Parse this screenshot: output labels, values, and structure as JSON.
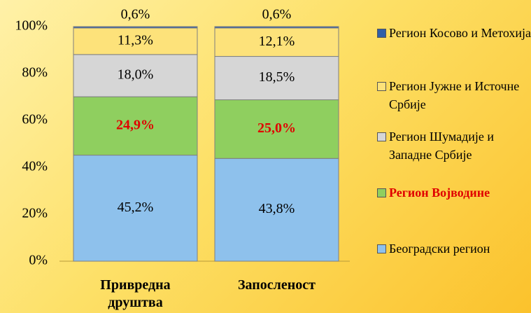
{
  "chart_data": {
    "type": "stacked_bar",
    "categories": [
      "Привредна друштва",
      "Запосленост"
    ],
    "series": [
      {
        "name": "Београдски регион",
        "color": "#8ec1ec",
        "values": [
          45.2,
          43.8
        ],
        "value_labels": [
          "45,2%",
          "43,8%"
        ]
      },
      {
        "name": "Регион Војводине",
        "color": "#8fcf5f",
        "values": [
          24.9,
          25.0
        ],
        "value_labels": [
          "24,9%",
          "25,0%"
        ],
        "label_color": "#e00000"
      },
      {
        "name": "Регион Шумадије и Западне Србије",
        "color": "#d6d6d6",
        "values": [
          18.0,
          18.5
        ],
        "value_labels": [
          "18,0%",
          "18,5%"
        ]
      },
      {
        "name": "Регион Јужне и Источне Србије",
        "color": "#fde27a",
        "values": [
          11.3,
          12.1
        ],
        "value_labels": [
          "11,3%",
          "12,1%"
        ]
      },
      {
        "name": "Регион Косово и Метохија",
        "color": "#2f5fa8",
        "values": [
          0.6,
          0.6
        ],
        "value_labels": [
          "0,6%",
          "0,6%"
        ]
      }
    ],
    "ylim": [
      0,
      100
    ],
    "yticks": [
      {
        "value": 0,
        "label": "0%"
      },
      {
        "value": 20,
        "label": "20%"
      },
      {
        "value": 40,
        "label": "40%"
      },
      {
        "value": 60,
        "label": "60%"
      },
      {
        "value": 80,
        "label": "80%"
      },
      {
        "value": 100,
        "label": "100%"
      }
    ],
    "legend": "right"
  }
}
